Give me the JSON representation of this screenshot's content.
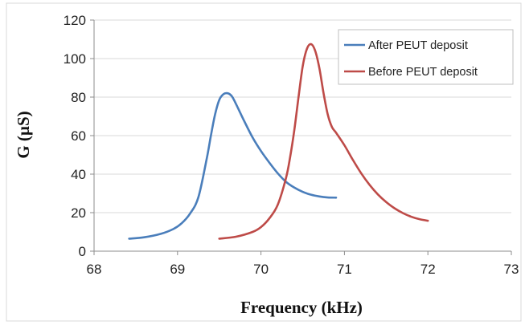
{
  "chart_data": {
    "type": "line",
    "title": "",
    "xlabel": "Frequency (kHz)",
    "ylabel": "G (µS)",
    "xlim": [
      68,
      73
    ],
    "ylim": [
      0,
      120
    ],
    "x_ticks": [
      68,
      69,
      70,
      71,
      72,
      73
    ],
    "y_ticks": [
      0,
      20,
      40,
      60,
      80,
      100,
      120
    ],
    "x_tick_labels": [
      "68",
      "69",
      "70",
      "71",
      "72",
      "73"
    ],
    "y_tick_labels": [
      "0",
      "20",
      "40",
      "60",
      "80",
      "100",
      "120"
    ],
    "grid": "horizontal",
    "legend_position": "top-right",
    "series": [
      {
        "name": "After PEUT deposit",
        "color": "#4a7ebb",
        "x": [
          68.42,
          68.6,
          68.8,
          68.95,
          69.05,
          69.15,
          69.25,
          69.35,
          69.4,
          69.45,
          69.5,
          69.55,
          69.6,
          69.65,
          69.7,
          69.8,
          69.9,
          70.0,
          70.1,
          70.2,
          70.3,
          70.4,
          70.5,
          70.6,
          70.7,
          70.8,
          70.9
        ],
        "y": [
          6.5,
          7.2,
          9.0,
          11.5,
          14.5,
          19.5,
          28,
          48,
          60,
          71,
          78.5,
          81.5,
          82,
          80.5,
          76.5,
          67.5,
          59,
          52,
          46,
          40.5,
          36,
          33,
          30.8,
          29.3,
          28.4,
          27.9,
          27.8
        ]
      },
      {
        "name": "Before PEUT deposit",
        "color": "#be4b48",
        "x": [
          69.5,
          69.7,
          69.9,
          70.0,
          70.1,
          70.2,
          70.3,
          70.35,
          70.4,
          70.45,
          70.5,
          70.55,
          70.6,
          70.65,
          70.7,
          70.75,
          70.8,
          70.85,
          70.9,
          71.0,
          71.1,
          71.2,
          71.3,
          71.4,
          71.5,
          71.6,
          71.7,
          71.8,
          71.9,
          72.0
        ],
        "y": [
          6.5,
          7.5,
          10,
          12.5,
          17,
          24,
          38,
          49,
          63,
          80,
          96,
          105,
          107.5,
          104,
          95,
          82,
          71,
          64.5,
          61.5,
          55,
          47.5,
          40.5,
          34.5,
          29.5,
          25.5,
          22.3,
          19.8,
          17.9,
          16.6,
          15.8
        ]
      }
    ]
  }
}
